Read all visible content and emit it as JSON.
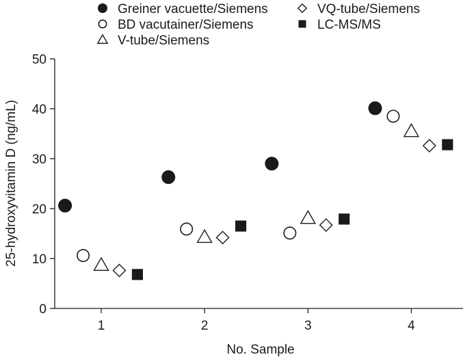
{
  "chart_data": {
    "type": "scatter",
    "xlabel": "No. Sample",
    "ylabel": "25-hydroxyvitamin D (ng/mL)",
    "xlim": [
      0.55,
      4.5
    ],
    "ylim": [
      0,
      50
    ],
    "x_ticks": [
      1,
      2,
      3,
      4
    ],
    "y_ticks": [
      0,
      10,
      20,
      30,
      40,
      50
    ],
    "grid": false,
    "legend_position": "top",
    "categories": [
      "1",
      "2",
      "3",
      "4"
    ],
    "series": [
      {
        "name": "Greiner vacuette/Siemens",
        "marker": "circle-filled",
        "offset": -0.35,
        "values": [
          20.6,
          26.3,
          29.0,
          40.1
        ]
      },
      {
        "name": "BD vacutainer/Siemens",
        "marker": "circle-open",
        "offset": -0.175,
        "values": [
          10.6,
          15.9,
          15.1,
          38.5
        ]
      },
      {
        "name": "V-tube/Siemens",
        "marker": "triangle-open",
        "offset": 0.0,
        "values": [
          8.7,
          14.3,
          18.1,
          35.5
        ]
      },
      {
        "name": "VQ-tube/Siemens",
        "marker": "diamond-open",
        "offset": 0.175,
        "values": [
          7.6,
          14.2,
          16.7,
          32.6
        ]
      },
      {
        "name": "LC-MS/MS",
        "marker": "square-filled",
        "offset": 0.35,
        "values": [
          6.8,
          16.5,
          17.9,
          32.8
        ]
      }
    ],
    "legend": {
      "items": [
        {
          "label": "Greiner vacuette/Siemens",
          "marker": "circle-filled"
        },
        {
          "label": "BD vacutainer/Siemens",
          "marker": "circle-open"
        },
        {
          "label": "V-tube/Siemens",
          "marker": "triangle-open"
        },
        {
          "label": "VQ-tube/Siemens",
          "marker": "diamond-open"
        },
        {
          "label": "LC-MS/MS",
          "marker": "square-filled"
        }
      ]
    },
    "colors": {
      "marker": "#1a1a1a",
      "axis": "#1a1a1a"
    }
  }
}
